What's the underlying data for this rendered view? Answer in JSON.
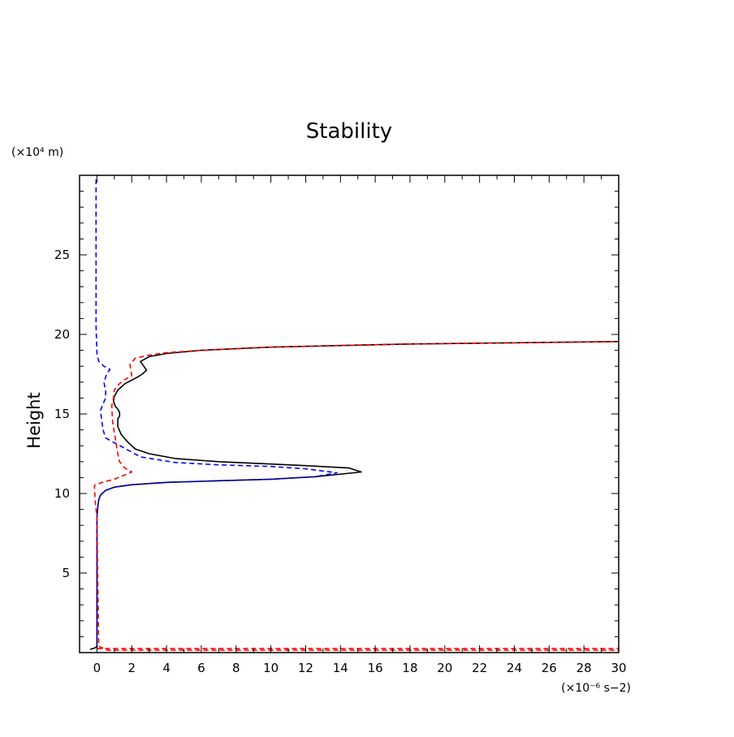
{
  "chart_data": {
    "type": "line",
    "title": "Stability",
    "xlabel": "",
    "ylabel": "Height",
    "x_unit_label": "(×10⁻⁶ s−2)",
    "y_unit_label": "(×10⁴ m)",
    "xlim": [
      -1,
      30
    ],
    "ylim": [
      0,
      30
    ],
    "x_ticks": [
      0,
      2,
      4,
      6,
      8,
      10,
      12,
      14,
      16,
      18,
      20,
      22,
      24,
      26,
      28,
      30
    ],
    "x_tick_labels": [
      "0",
      "2",
      "4",
      "6",
      "8",
      "10",
      "12",
      "14",
      "16",
      "18",
      "20",
      "22",
      "24",
      "26",
      "28",
      "30"
    ],
    "y_ticks": [
      5,
      10,
      15,
      20,
      25
    ],
    "y_tick_labels": [
      "5",
      "10",
      "15",
      "20",
      "25"
    ],
    "grid": false,
    "series": [
      {
        "name": "black-solid",
        "color": "#000000",
        "style": "solid",
        "x": [
          -0.4,
          -0.1,
          0.0,
          0.0,
          0.05,
          0.1,
          0.2,
          0.5,
          1.0,
          2.0,
          4.0,
          7.0,
          10.0,
          12.5,
          14.3,
          15.2,
          14.5,
          12.0,
          10.0,
          7.0,
          4.5,
          3.0,
          2.2,
          1.8,
          1.4,
          1.2,
          1.2,
          1.3,
          1.3,
          1.2,
          1.05,
          0.95,
          1.0,
          1.2,
          1.6,
          2.3,
          2.6,
          2.85,
          2.5,
          3.0,
          4.0,
          6.0,
          8.0,
          10.0,
          14.0,
          18.0,
          22.0,
          26.0,
          30.0
        ],
        "y": [
          0.2,
          0.3,
          0.4,
          8.5,
          9.2,
          9.6,
          9.9,
          10.2,
          10.4,
          10.55,
          10.7,
          10.8,
          10.9,
          11.05,
          11.25,
          11.35,
          11.6,
          11.75,
          11.85,
          12.0,
          12.2,
          12.5,
          12.8,
          13.2,
          13.7,
          14.2,
          14.7,
          14.85,
          15.1,
          15.3,
          15.5,
          15.8,
          16.1,
          16.5,
          16.9,
          17.3,
          17.5,
          17.75,
          18.3,
          18.6,
          18.8,
          19.0,
          19.1,
          19.2,
          19.3,
          19.4,
          19.45,
          19.5,
          19.55
        ]
      },
      {
        "name": "blue-dashed",
        "color": "#0000ff",
        "style": "dashed",
        "x": [
          0.0,
          0.0,
          0.05,
          0.1,
          0.2,
          0.5,
          1.0,
          2.0,
          4.0,
          7.0,
          10.0,
          12.5,
          13.8,
          12.0,
          10.0,
          7.0,
          4.5,
          2.5,
          1.5,
          0.8,
          0.5,
          0.35,
          0.2,
          0.3,
          0.5,
          0.5,
          0.45,
          0.4,
          0.5,
          0.55,
          0.75,
          0.4,
          0.1,
          0.0,
          -0.05,
          -0.05
        ],
        "y": [
          0.3,
          8.5,
          9.2,
          9.6,
          9.9,
          10.2,
          10.4,
          10.55,
          10.7,
          10.8,
          10.9,
          11.05,
          11.3,
          11.55,
          11.7,
          11.8,
          11.95,
          12.3,
          12.9,
          13.3,
          13.5,
          14.0,
          15.2,
          15.5,
          16.0,
          16.5,
          16.7,
          17.0,
          17.3,
          17.5,
          17.8,
          18.0,
          18.3,
          18.8,
          20.5,
          30.0
        ]
      },
      {
        "name": "red-dashed",
        "color": "#ff0000",
        "style": "dashed",
        "x": [
          0.0,
          30.0,
          30.0,
          0.6,
          0.3,
          0.1,
          0.0,
          -0.1,
          -0.15,
          0.3,
          1.0,
          2.0,
          1.6,
          1.3,
          1.2,
          1.05,
          0.9,
          0.85,
          0.95,
          1.0,
          1.2,
          1.5,
          2.0,
          1.9,
          2.2,
          3.0,
          4.0,
          6.0,
          8.0,
          10.0,
          14.0,
          18.0,
          22.0,
          26.0,
          30.0
        ],
        "y": [
          0.25,
          0.25,
          0.15,
          0.15,
          0.3,
          0.4,
          8.5,
          9.5,
          10.5,
          10.7,
          10.9,
          11.35,
          11.6,
          12.0,
          12.5,
          13.5,
          14.5,
          15.5,
          16.0,
          16.5,
          16.8,
          17.1,
          17.4,
          18.1,
          18.5,
          18.7,
          18.85,
          19.0,
          19.1,
          19.2,
          19.3,
          19.4,
          19.45,
          19.5,
          19.55
        ]
      }
    ]
  }
}
